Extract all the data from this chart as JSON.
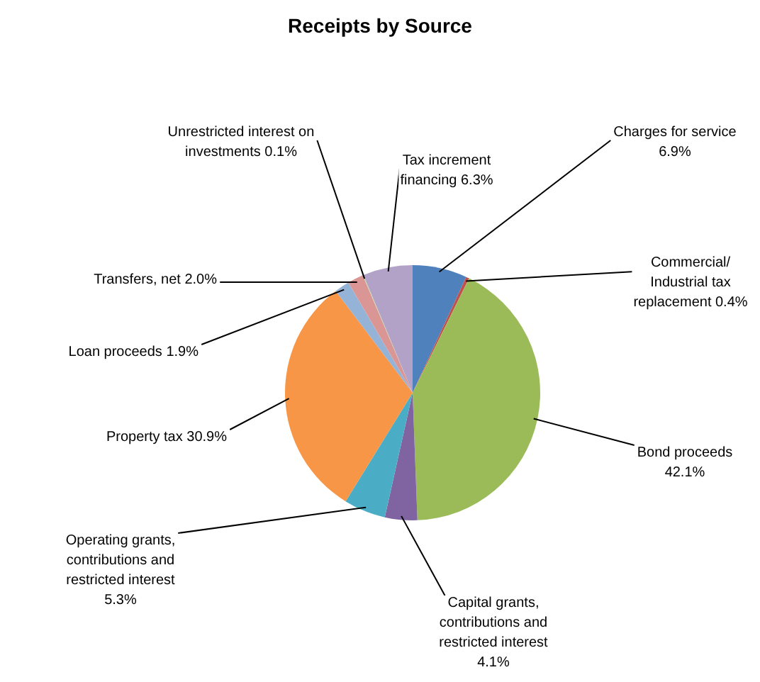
{
  "chart_data": {
    "type": "pie",
    "title": "Receipts by Source",
    "categories": [
      "Charges for service",
      "Commercial/ Industrial tax replacement",
      "Bond proceeds",
      "Capital grants, contributions and restricted interest",
      "Operating grants, contributions and restricted interest",
      "Property tax",
      "Loan proceeds",
      "Transfers, net",
      "Unrestricted interest on investments",
      "Tax increment financing"
    ],
    "values": [
      6.9,
      0.4,
      42.1,
      4.1,
      5.3,
      30.9,
      1.9,
      2.0,
      0.1,
      6.3
    ],
    "value_labels": [
      "6.9%",
      "0.4%",
      "42.1%",
      "4.1%",
      "5.3%",
      "30.9%",
      "1.9%",
      "2.0%",
      "0.1%",
      "6.3%"
    ],
    "colors": [
      "#4f81bd",
      "#c0504d",
      "#9bbb59",
      "#8064a2",
      "#4bacc6",
      "#f79646",
      "#95b3d7",
      "#d99694",
      "#c3d69b",
      "#b3a2c7"
    ]
  }
}
